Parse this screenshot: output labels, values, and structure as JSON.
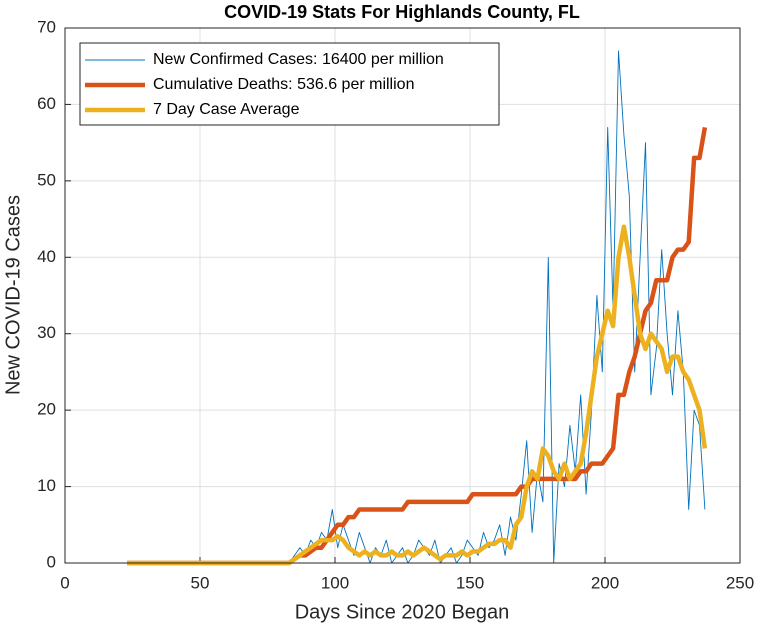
{
  "chart_data": {
    "type": "line",
    "title": "COVID-19 Stats For Highlands County, FL",
    "x_label": "Days Since 2020 Began",
    "y_label": "New COVID-19 Cases",
    "x": [
      23,
      25,
      27,
      29,
      31,
      33,
      35,
      37,
      39,
      41,
      43,
      45,
      47,
      49,
      51,
      53,
      55,
      57,
      59,
      61,
      63,
      65,
      67,
      69,
      71,
      73,
      75,
      77,
      79,
      81,
      83,
      85,
      87,
      89,
      91,
      93,
      95,
      97,
      99,
      101,
      103,
      105,
      107,
      109,
      111,
      113,
      115,
      117,
      119,
      121,
      123,
      125,
      127,
      129,
      131,
      133,
      135,
      137,
      139,
      141,
      143,
      145,
      147,
      149,
      151,
      153,
      155,
      157,
      159,
      161,
      163,
      165,
      167,
      169,
      171,
      173,
      175,
      177,
      179,
      181,
      183,
      185,
      187,
      189,
      191,
      193,
      195,
      197,
      199,
      201,
      203,
      205,
      207,
      209,
      211,
      213,
      215,
      217,
      219,
      221,
      223,
      225,
      227,
      229,
      231,
      233,
      235,
      237
    ],
    "series": [
      {
        "name": "New Confirmed Cases: 16400 per million",
        "color": "#0072BD",
        "width": 0.9,
        "values": [
          0,
          0,
          0,
          0,
          0,
          0,
          0,
          0,
          0,
          0,
          0,
          0,
          0,
          0,
          0,
          0,
          0,
          0,
          0,
          0,
          0,
          0,
          0,
          0,
          0,
          0,
          0,
          0,
          0,
          0,
          0,
          1,
          2,
          1,
          3,
          2,
          4,
          3,
          7,
          2,
          5,
          3,
          1,
          4,
          2,
          0,
          2,
          1,
          3,
          0,
          1,
          2,
          0,
          1,
          3,
          2,
          1,
          3,
          0,
          1,
          2,
          0,
          1,
          3,
          2,
          1,
          4,
          2,
          3,
          5,
          1,
          6,
          3,
          9,
          16,
          4,
          12,
          8,
          40,
          0,
          13,
          10,
          18,
          12,
          22,
          9,
          20,
          35,
          25,
          57,
          33,
          67,
          56,
          48,
          25,
          40,
          55,
          22,
          28,
          41,
          30,
          22,
          33,
          25,
          7,
          20,
          18,
          7
        ]
      },
      {
        "name": "Cumulative Deaths: 536.6 per million",
        "color": "#D95319",
        "width": 4.5,
        "values": [
          0,
          0,
          0,
          0,
          0,
          0,
          0,
          0,
          0,
          0,
          0,
          0,
          0,
          0,
          0,
          0,
          0,
          0,
          0,
          0,
          0,
          0,
          0,
          0,
          0,
          0,
          0,
          0,
          0,
          0,
          0,
          0.5,
          1,
          1,
          1.5,
          2,
          2,
          3,
          4,
          5,
          5,
          6,
          6,
          7,
          7,
          7,
          7,
          7,
          7,
          7,
          7,
          7,
          8,
          8,
          8,
          8,
          8,
          8,
          8,
          8,
          8,
          8,
          8,
          8,
          9,
          9,
          9,
          9,
          9,
          9,
          9,
          9,
          9,
          10,
          10,
          11,
          11,
          11,
          11,
          11,
          11,
          11,
          11,
          11,
          12,
          12,
          13,
          13,
          13,
          14,
          15,
          22,
          22,
          25,
          27,
          30,
          33,
          34,
          37,
          37,
          37,
          40,
          41,
          41,
          42,
          53,
          53,
          57
        ]
      },
      {
        "name": "7 Day Case Average",
        "color": "#EDB120",
        "width": 4.5,
        "values": [
          0,
          0,
          0,
          0,
          0,
          0,
          0,
          0,
          0,
          0,
          0,
          0,
          0,
          0,
          0,
          0,
          0,
          0,
          0,
          0,
          0,
          0,
          0,
          0,
          0,
          0,
          0,
          0,
          0,
          0,
          0,
          0.5,
          1,
          1.5,
          2,
          2.5,
          3,
          3,
          3,
          3.5,
          3,
          2,
          1.5,
          1,
          1.5,
          1,
          1.5,
          1,
          1,
          1.5,
          1,
          1,
          1.5,
          1,
          1.5,
          2,
          1.5,
          1,
          0.5,
          1,
          1,
          1,
          1.5,
          1,
          1.5,
          1.5,
          2,
          2.5,
          2.5,
          3,
          3,
          2,
          5,
          6,
          10,
          12,
          11,
          15,
          14,
          12,
          11,
          13,
          11,
          12,
          13,
          17,
          22,
          27,
          30,
          33,
          31,
          40,
          44,
          40,
          35,
          30,
          28,
          30,
          29,
          28,
          25,
          27,
          27,
          25,
          24,
          22,
          20,
          15
        ]
      }
    ],
    "xlim": [
      0,
      250
    ],
    "xticks": [
      0,
      50,
      100,
      150,
      200,
      250
    ],
    "ylim": [
      0,
      70
    ],
    "yticks": [
      0,
      10,
      20,
      30,
      40,
      50,
      60,
      70
    ],
    "grid": true,
    "legend": "upper left"
  }
}
